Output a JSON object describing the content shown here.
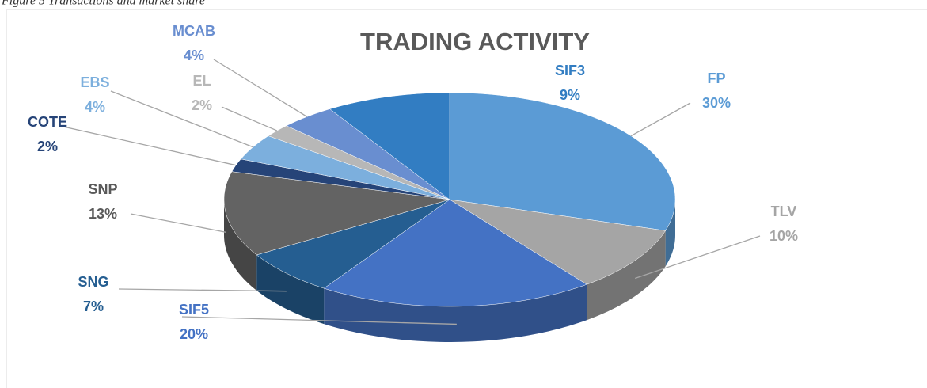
{
  "caption": "Figure 5 Transactions and market share",
  "chart_data": {
    "type": "pie",
    "title": "TRADING ACTIVITY",
    "categories": [
      "FP",
      "TLV",
      "SIF5",
      "SNG",
      "SNP",
      "COTE",
      "EBS",
      "EL",
      "MCAB",
      "SIF3"
    ],
    "values": [
      30,
      10,
      20,
      7,
      13,
      2,
      4,
      2,
      4,
      9
    ],
    "value_labels": [
      "30%",
      "10%",
      "20%",
      "7%",
      "13%",
      "2%",
      "4%",
      "2%",
      "4%",
      "9%"
    ],
    "colors": [
      "#5b9bd5",
      "#a5a5a5",
      "#4472c4",
      "#255e91",
      "#636363",
      "#264478",
      "#7cafdd",
      "#b7b7b7",
      "#698ed0",
      "#327dc2"
    ]
  }
}
